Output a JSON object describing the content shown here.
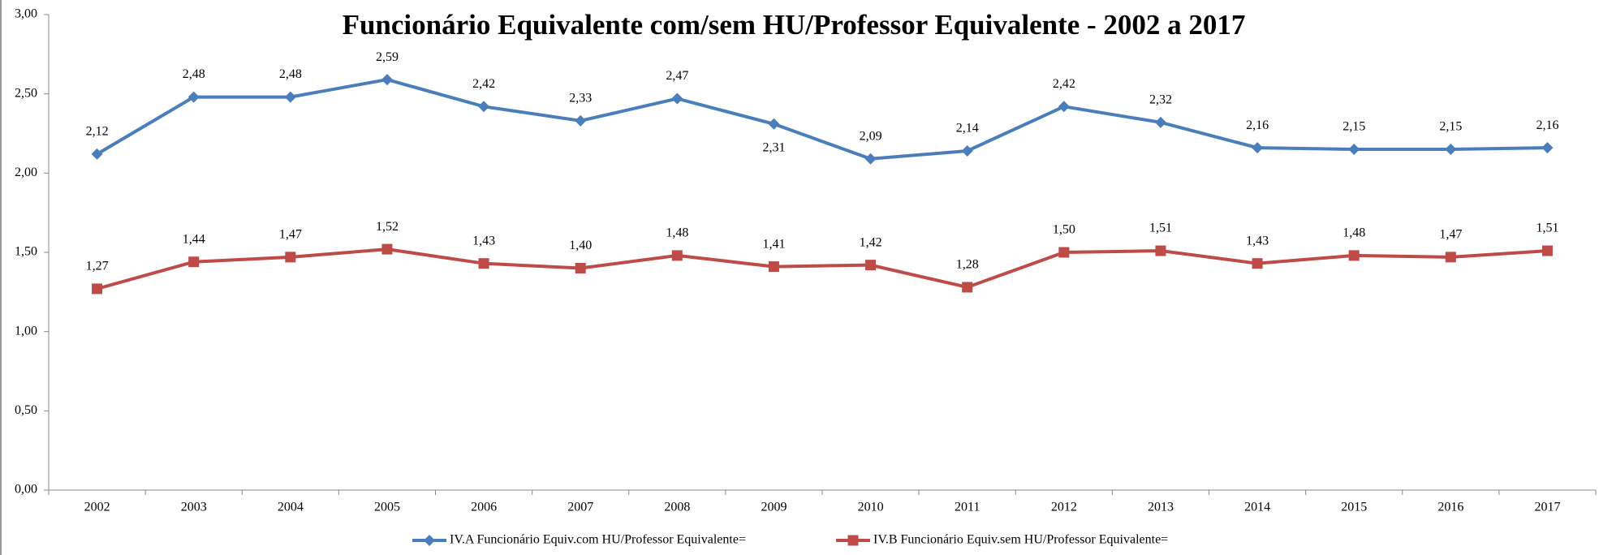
{
  "chart_data": {
    "type": "line",
    "title": "Funcionário Equivalente com/sem HU/Professor Equivalente - 2002 a 2017",
    "categories": [
      "2002",
      "2003",
      "2004",
      "2005",
      "2006",
      "2007",
      "2008",
      "2009",
      "2010",
      "2011",
      "2012",
      "2013",
      "2014",
      "2015",
      "2016",
      "2017"
    ],
    "series": [
      {
        "name": "IV.A Funcionário Equiv.com HU/Professor Equivalente=",
        "color": "#4a7ebb",
        "marker": "diamond",
        "values": [
          2.12,
          2.48,
          2.48,
          2.59,
          2.42,
          2.33,
          2.47,
          2.31,
          2.09,
          2.14,
          2.42,
          2.32,
          2.16,
          2.15,
          2.15,
          2.16
        ],
        "value_labels": [
          "2,12",
          "2,48",
          "2,48",
          "2,59",
          "2,42",
          "2,33",
          "2,47",
          "2,31",
          "2,09",
          "2,14",
          "2,42",
          "2,32",
          "2,16",
          "2,15",
          "2,15",
          "2,16"
        ]
      },
      {
        "name": "IV.B Funcionário Equiv.sem HU/Professor Equivalente=",
        "color": "#be4b48",
        "marker": "square",
        "values": [
          1.27,
          1.44,
          1.47,
          1.52,
          1.43,
          1.4,
          1.48,
          1.41,
          1.42,
          1.28,
          1.5,
          1.51,
          1.43,
          1.48,
          1.47,
          1.51
        ],
        "value_labels": [
          "1,27",
          "1,44",
          "1,47",
          "1,52",
          "1,43",
          "1,40",
          "1,48",
          "1,41",
          "1,42",
          "1,28",
          "1,50",
          "1,51",
          "1,43",
          "1,48",
          "1,47",
          "1,51"
        ]
      }
    ],
    "ylim": [
      0,
      3
    ],
    "yticks": [
      {
        "value": 0,
        "label": "0,00"
      },
      {
        "value": 0.5,
        "label": "0,50"
      },
      {
        "value": 1,
        "label": "1,00"
      },
      {
        "value": 1.5,
        "label": "1,50"
      },
      {
        "value": 2,
        "label": "2,00"
      },
      {
        "value": 2.5,
        "label": "2,50"
      },
      {
        "value": 3,
        "label": "3,00"
      }
    ],
    "grid": false,
    "legend": "bottom"
  }
}
